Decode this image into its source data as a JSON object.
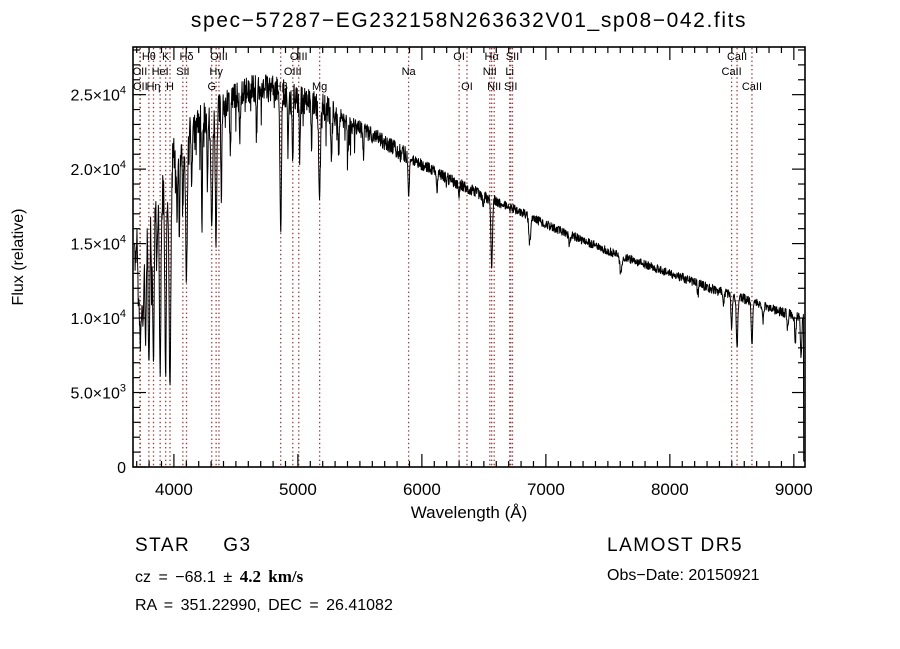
{
  "title": "spec−57287−EG232158N263632V01_sp08−042.fits",
  "annotations": {
    "object_class": "STAR",
    "object_subclass": "G3",
    "cz_prefix": "cz = −68.1 ",
    "cz_error": "± 4.2 km/s",
    "ra_dec": "RA = 351.22990, DEC =  26.41082",
    "survey": "LAMOST DR5",
    "obs_date": "Obs−Date: 20150921"
  },
  "chart_data": {
    "type": "line",
    "title": "spec−57287−EG232158N263632V01_sp08−042.fits",
    "xlabel": "Wavelength (Å)",
    "ylabel": "Flux (relative)",
    "xlim": [
      3670,
      9090
    ],
    "ylim": [
      0,
      28200
    ],
    "x_ticks": [
      4000,
      5000,
      6000,
      7000,
      8000,
      9000
    ],
    "x_minor_step": 100,
    "y_minor_step": 1000,
    "y_ticks": [
      {
        "v": 0,
        "m": "0",
        "e": ""
      },
      {
        "v": 5000,
        "m": "5.0×10",
        "e": "3"
      },
      {
        "v": 10000,
        "m": "1.0×10",
        "e": "4"
      },
      {
        "v": 15000,
        "m": "1.5×10",
        "e": "4"
      },
      {
        "v": 20000,
        "m": "2.0×10",
        "e": "4"
      },
      {
        "v": 25000,
        "m": "2.5×10",
        "e": "4"
      }
    ],
    "colors": {
      "marker": "#9e3b3b",
      "trace": "#000000",
      "axes": "#000000"
    },
    "legend": "none",
    "grid": false,
    "spectral_lines": [
      {
        "label": "OII",
        "wl": 3726.0,
        "row": 2
      },
      {
        "label": "OII",
        "wl": 3728.8,
        "row": 3
      },
      {
        "label": "Hθ",
        "wl": 3798.0,
        "row": 1
      },
      {
        "label": "Hη",
        "wl": 3835.4,
        "row": 3
      },
      {
        "label": "HeI",
        "wl": 3889.0,
        "row": 2
      },
      {
        "label": "K",
        "wl": 3933.7,
        "row": 1
      },
      {
        "label": "H",
        "wl": 3968.5,
        "row": 3
      },
      {
        "label": "SII",
        "wl": 4072.0,
        "row": 2
      },
      {
        "label": "Hδ",
        "wl": 4101.7,
        "row": 1
      },
      {
        "label": "G",
        "wl": 4305.0,
        "row": 3
      },
      {
        "label": "Hγ",
        "wl": 4340.5,
        "row": 2
      },
      {
        "label": "OIII",
        "wl": 4363.2,
        "row": 1
      },
      {
        "label": "Hβ",
        "wl": 4861.3,
        "row": 3
      },
      {
        "label": "OIII",
        "wl": 4958.9,
        "row": 2
      },
      {
        "label": "OIII",
        "wl": 5006.8,
        "row": 1
      },
      {
        "label": "Mg",
        "wl": 5175.3,
        "row": 3
      },
      {
        "label": "Na",
        "wl": 5893.0,
        "row": 2
      },
      {
        "label": "OI",
        "wl": 6300.3,
        "row": 1
      },
      {
        "label": "OI",
        "wl": 6363.8,
        "row": 3
      },
      {
        "label": "NII",
        "wl": 6548.0,
        "row": 2
      },
      {
        "label": "Hα",
        "wl": 6562.8,
        "row": 1
      },
      {
        "label": "NII",
        "wl": 6583.4,
        "row": 3
      },
      {
        "label": "Li",
        "wl": 6707.9,
        "row": 2
      },
      {
        "label": "SII",
        "wl": 6716.4,
        "row": 3
      },
      {
        "label": "SII",
        "wl": 6730.8,
        "row": 1
      },
      {
        "label": "CaII",
        "wl": 8498.0,
        "row": 2
      },
      {
        "label": "CaII",
        "wl": 8542.1,
        "row": 1
      },
      {
        "label": "CaII",
        "wl": 8662.1,
        "row": 3
      }
    ],
    "continuum": [
      [
        3682,
        14200
      ],
      [
        3720,
        15200
      ],
      [
        3760,
        16200
      ],
      [
        3800,
        16600
      ],
      [
        3850,
        17600
      ],
      [
        3900,
        18300
      ],
      [
        3950,
        19000
      ],
      [
        4000,
        20600
      ],
      [
        4060,
        21600
      ],
      [
        4120,
        22300
      ],
      [
        4200,
        23200
      ],
      [
        4300,
        23800
      ],
      [
        4400,
        24400
      ],
      [
        4500,
        24900
      ],
      [
        4600,
        25300
      ],
      [
        4700,
        25500
      ],
      [
        4800,
        25400
      ],
      [
        4900,
        25100
      ],
      [
        5000,
        24700
      ],
      [
        5100,
        24500
      ],
      [
        5200,
        24200
      ],
      [
        5300,
        23700
      ],
      [
        5400,
        23200
      ],
      [
        5500,
        22700
      ],
      [
        5600,
        22300
      ],
      [
        5700,
        21800
      ],
      [
        5800,
        21300
      ],
      [
        5900,
        20800
      ],
      [
        6000,
        20300
      ],
      [
        6100,
        19900
      ],
      [
        6200,
        19400
      ],
      [
        6300,
        19000
      ],
      [
        6400,
        18600
      ],
      [
        6500,
        18200
      ],
      [
        6600,
        17800
      ],
      [
        6700,
        17500
      ],
      [
        6800,
        17100
      ],
      [
        6900,
        16700
      ],
      [
        7000,
        16300
      ],
      [
        7100,
        15900
      ],
      [
        7200,
        15600
      ],
      [
        7300,
        15200
      ],
      [
        7400,
        14900
      ],
      [
        7500,
        14500
      ],
      [
        7600,
        14200
      ],
      [
        7700,
        13900
      ],
      [
        7800,
        13600
      ],
      [
        7900,
        13300
      ],
      [
        8000,
        13000
      ],
      [
        8100,
        12700
      ],
      [
        8200,
        12400
      ],
      [
        8300,
        12100
      ],
      [
        8400,
        11800
      ],
      [
        8500,
        11500
      ],
      [
        8600,
        11300
      ],
      [
        8700,
        11000
      ],
      [
        8800,
        10700
      ],
      [
        8900,
        10400
      ],
      [
        9000,
        10200
      ],
      [
        9090,
        9900
      ]
    ],
    "absorption_features": [
      [
        3715,
        0.28,
        5
      ],
      [
        3726,
        0.32,
        5
      ],
      [
        3734,
        0.38,
        5
      ],
      [
        3750,
        0.45,
        6
      ],
      [
        3771,
        0.5,
        6
      ],
      [
        3798,
        0.58,
        6
      ],
      [
        3820,
        0.3,
        4
      ],
      [
        3835,
        0.62,
        6
      ],
      [
        3862,
        0.25,
        4
      ],
      [
        3889,
        0.64,
        6
      ],
      [
        3933,
        0.66,
        6
      ],
      [
        3968,
        0.72,
        7
      ],
      [
        4026,
        0.22,
        4
      ],
      [
        4045,
        0.25,
        4
      ],
      [
        4072,
        0.2,
        4
      ],
      [
        4101,
        0.42,
        7
      ],
      [
        4144,
        0.18,
        4
      ],
      [
        4226,
        0.28,
        4
      ],
      [
        4271,
        0.2,
        4
      ],
      [
        4305,
        0.32,
        8
      ],
      [
        4340,
        0.38,
        6
      ],
      [
        4383,
        0.25,
        4
      ],
      [
        4455,
        0.15,
        4
      ],
      [
        4531,
        0.12,
        4
      ],
      [
        4668,
        0.12,
        4
      ],
      [
        4861,
        0.38,
        6
      ],
      [
        4920,
        0.15,
        4
      ],
      [
        4957,
        0.18,
        4
      ],
      [
        5015,
        0.15,
        4
      ],
      [
        5110,
        0.12,
        4
      ],
      [
        5175,
        0.24,
        7
      ],
      [
        5270,
        0.15,
        5
      ],
      [
        5328,
        0.1,
        4
      ],
      [
        5404,
        0.08,
        4
      ],
      [
        5528,
        0.08,
        4
      ],
      [
        5893,
        0.12,
        6
      ],
      [
        6122,
        0.06,
        4
      ],
      [
        6300,
        0.05,
        4
      ],
      [
        6495,
        0.06,
        4
      ],
      [
        6563,
        0.26,
        6
      ],
      [
        6870,
        0.11,
        7
      ],
      [
        7190,
        0.05,
        6
      ],
      [
        7605,
        0.09,
        8
      ],
      [
        8227,
        0.06,
        5
      ],
      [
        8433,
        0.06,
        5
      ],
      [
        8498,
        0.2,
        5
      ],
      [
        8542,
        0.3,
        6
      ],
      [
        8662,
        0.26,
        6
      ],
      [
        8752,
        0.1,
        5
      ],
      [
        8950,
        0.1,
        5
      ],
      [
        9012,
        0.18,
        5
      ],
      [
        9058,
        0.28,
        5
      ]
    ],
    "noise_bands": [
      [
        3670,
        4000,
        1500
      ],
      [
        4000,
        4300,
        1100
      ],
      [
        4300,
        5300,
        950
      ],
      [
        5300,
        5900,
        550
      ],
      [
        5900,
        6600,
        380
      ],
      [
        6600,
        7300,
        300
      ],
      [
        7300,
        8100,
        280
      ],
      [
        8100,
        9090,
        320
      ]
    ],
    "spike_bands": [
      [
        3900,
        5500,
        0.1,
        2400
      ],
      [
        5500,
        6200,
        0.04,
        900
      ]
    ],
    "edge_drop_wl": 9078,
    "seed": 20150921
  }
}
